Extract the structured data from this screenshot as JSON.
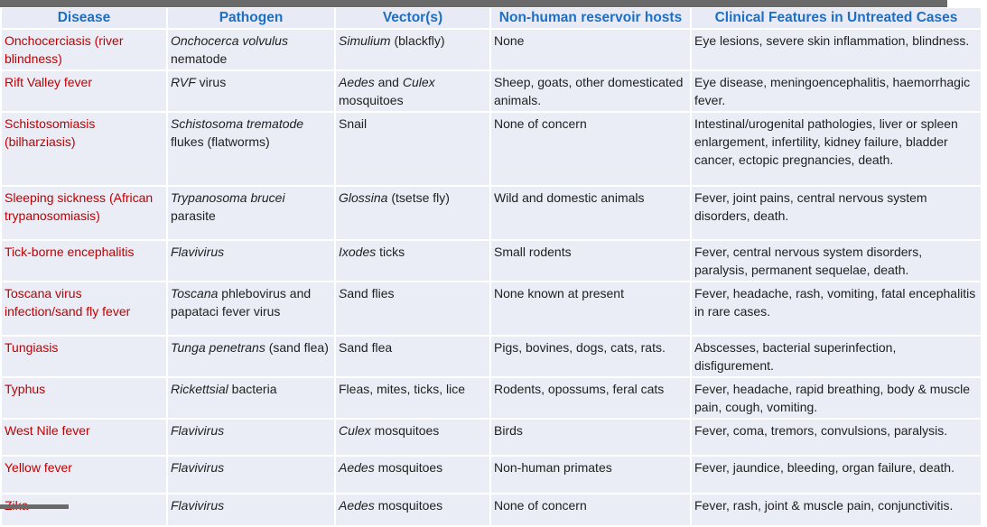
{
  "colors": {
    "accent_blue": "#1c6fc4",
    "disease_red": "#c00000",
    "row_bg": "#eaedf6",
    "header_bg": "#e8ebf5",
    "bar_gray": "#6a6a6a",
    "text_dark": "#1f1f1f",
    "grid_white": "#ffffff"
  },
  "table": {
    "columns": [
      {
        "key": "disease",
        "label": "Disease"
      },
      {
        "key": "pathogen",
        "label": "Pathogen"
      },
      {
        "key": "vectors",
        "label": "Vector(s)"
      },
      {
        "key": "reservoir",
        "label": "Non-human reservoir hosts"
      },
      {
        "key": "clinical",
        "label": "Clinical Features in Untreated Cases"
      }
    ],
    "rows": [
      {
        "disease": "Onchocerciasis (river blindness)",
        "pathogen": [
          {
            "t": "Onchocerca volvulus",
            "i": true
          },
          {
            "t": " nematode"
          }
        ],
        "vector": [
          {
            "t": "Simulium",
            "i": true
          },
          {
            "t": " (blackfly)"
          }
        ],
        "reservoir": "None",
        "clinical": "Eye lesions, severe skin inflammation, blindness."
      },
      {
        "disease": "Rift Valley fever",
        "pathogen": [
          {
            "t": "RVF",
            "i": true
          },
          {
            "t": " virus"
          }
        ],
        "vector": [
          {
            "t": "Aedes",
            "i": true
          },
          {
            "t": " and "
          },
          {
            "t": "Culex",
            "i": true
          },
          {
            "t": " mosquitoes"
          }
        ],
        "reservoir": "Sheep, goats, other domesticated animals.",
        "clinical": "Eye disease, meningoencephalitis, haemorrhagic fever."
      },
      {
        "disease": "Schistosomiasis (bilharziasis)",
        "pathogen": [
          {
            "t": "Schistosoma trematode",
            "i": true
          },
          {
            "t": " flukes (flatworms)"
          }
        ],
        "vector": [
          {
            "t": "Snail"
          }
        ],
        "reservoir": "None of concern",
        "clinical": "Intestinal/urogenital pathologies, liver or spleen enlargement, infertility, kidney failure, bladder cancer, ectopic pregnancies, death."
      },
      {
        "disease": "Sleeping sickness (African trypanosomiasis)",
        "pathogen": [
          {
            "t": "Trypanosoma brucei",
            "i": true
          },
          {
            "t": " parasite"
          }
        ],
        "vector": [
          {
            "t": "Glossina",
            "i": true
          },
          {
            "t": " (tsetse fly)"
          }
        ],
        "reservoir": "Wild and domestic animals",
        "clinical": "Fever, joint pains, central nervous system disorders, death."
      },
      {
        "disease": "Tick-borne encephalitis",
        "pathogen": [
          {
            "t": "Flavivirus",
            "i": true
          }
        ],
        "vector": [
          {
            "t": "Ixodes",
            "i": true
          },
          {
            "t": " ticks"
          }
        ],
        "reservoir": "Small rodents",
        "clinical": "Fever, central nervous system disorders, paralysis, permanent sequelae, death."
      },
      {
        "disease": "Toscana virus infection/sand fly fever",
        "pathogen": [
          {
            "t": "Toscana",
            "i": true
          },
          {
            "t": " phlebovirus and papataci fever virus"
          }
        ],
        "vector": [
          {
            "t": "S",
            "i": true
          },
          {
            "t": "and flies"
          }
        ],
        "reservoir": "None known at present",
        "clinical": "Fever, headache, rash, vomiting, fatal encephalitis in rare cases."
      },
      {
        "disease": "Tungiasis",
        "pathogen": [
          {
            "t": "Tunga penetrans",
            "i": true
          },
          {
            "t": " (sand flea)"
          }
        ],
        "vector": [
          {
            "t": "Sand flea"
          }
        ],
        "reservoir": "Pigs, bovines, dogs, cats, rats.",
        "clinical": "Abscesses, bacterial superinfection, disfigurement."
      },
      {
        "disease": "Typhus",
        "pathogen": [
          {
            "t": "Rickettsial",
            "i": true
          },
          {
            "t": " bacteria"
          }
        ],
        "vector": [
          {
            "t": "Fleas, mites, ticks, lice"
          }
        ],
        "reservoir": "Rodents, opossums, feral cats",
        "clinical": "Fever, headache, rapid breathing, body & muscle pain, cough, vomiting."
      },
      {
        "disease": "West Nile fever",
        "pathogen": [
          {
            "t": "Flavivirus",
            "i": true
          }
        ],
        "vector": [
          {
            "t": "Culex",
            "i": true
          },
          {
            "t": " mosquitoes"
          }
        ],
        "reservoir": "Birds",
        "clinical": "Fever, coma, tremors, convulsions, paralysis."
      },
      {
        "disease": "Yellow fever",
        "pathogen": [
          {
            "t": "Flavivirus",
            "i": true
          }
        ],
        "vector": [
          {
            "t": "Aedes",
            "i": true
          },
          {
            "t": " mosquitoes"
          }
        ],
        "reservoir": "Non-human primates",
        "clinical": "Fever, jaundice, bleeding, organ failure, death."
      },
      {
        "disease": "Zika",
        "pathogen": [
          {
            "t": "Flavivirus",
            "i": true
          }
        ],
        "vector": [
          {
            "t": "Aedes",
            "i": true
          },
          {
            "t": " mosquitoes"
          }
        ],
        "reservoir": "None of concern",
        "clinical": "Fever, rash, joint & muscle pain, conjunctivitis."
      }
    ]
  }
}
